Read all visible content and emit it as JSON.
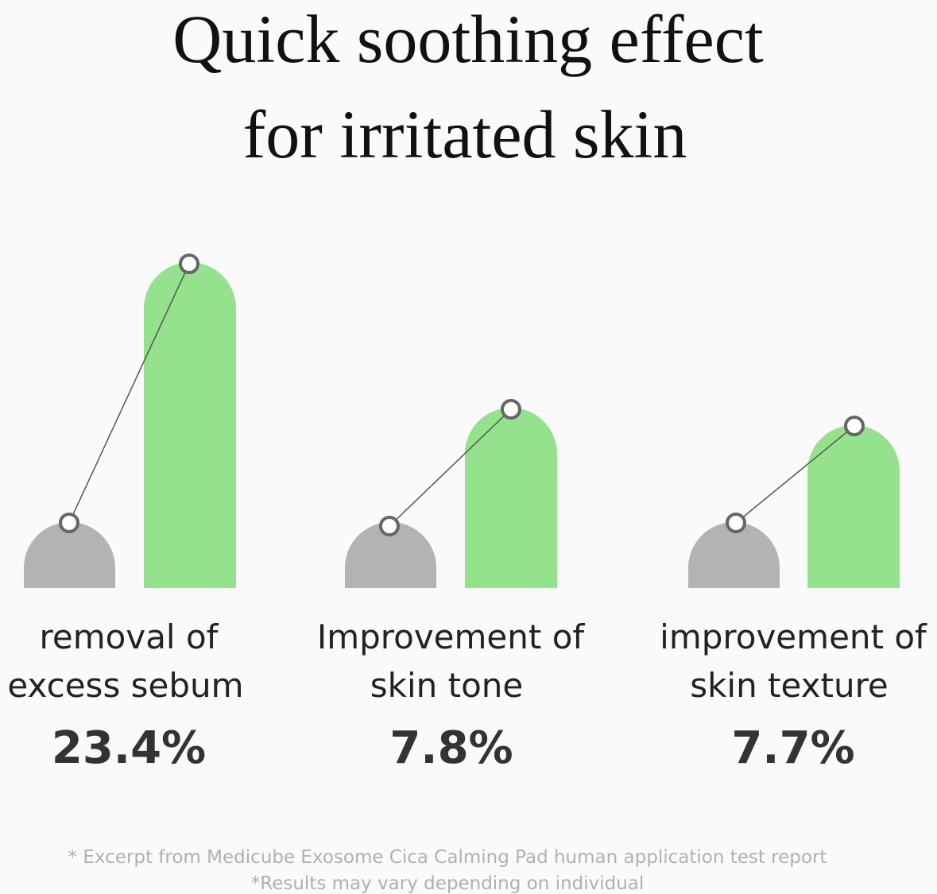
{
  "title": [
    "Quick soothing effect",
    "for irritated skin"
  ],
  "items": [
    {
      "label": [
        "removal of",
        "excess sebum"
      ],
      "value": "23.4%"
    },
    {
      "label": [
        "Improvement of",
        "skin tone"
      ],
      "value": "7.8%"
    },
    {
      "label": [
        "improvement of",
        "skin texture"
      ],
      "value": "7.7%"
    }
  ],
  "footnotes": [
    "* Excerpt from Medicube Exosome Cica Calming Pad human application test report",
    "*Results may vary depending on individual"
  ]
}
